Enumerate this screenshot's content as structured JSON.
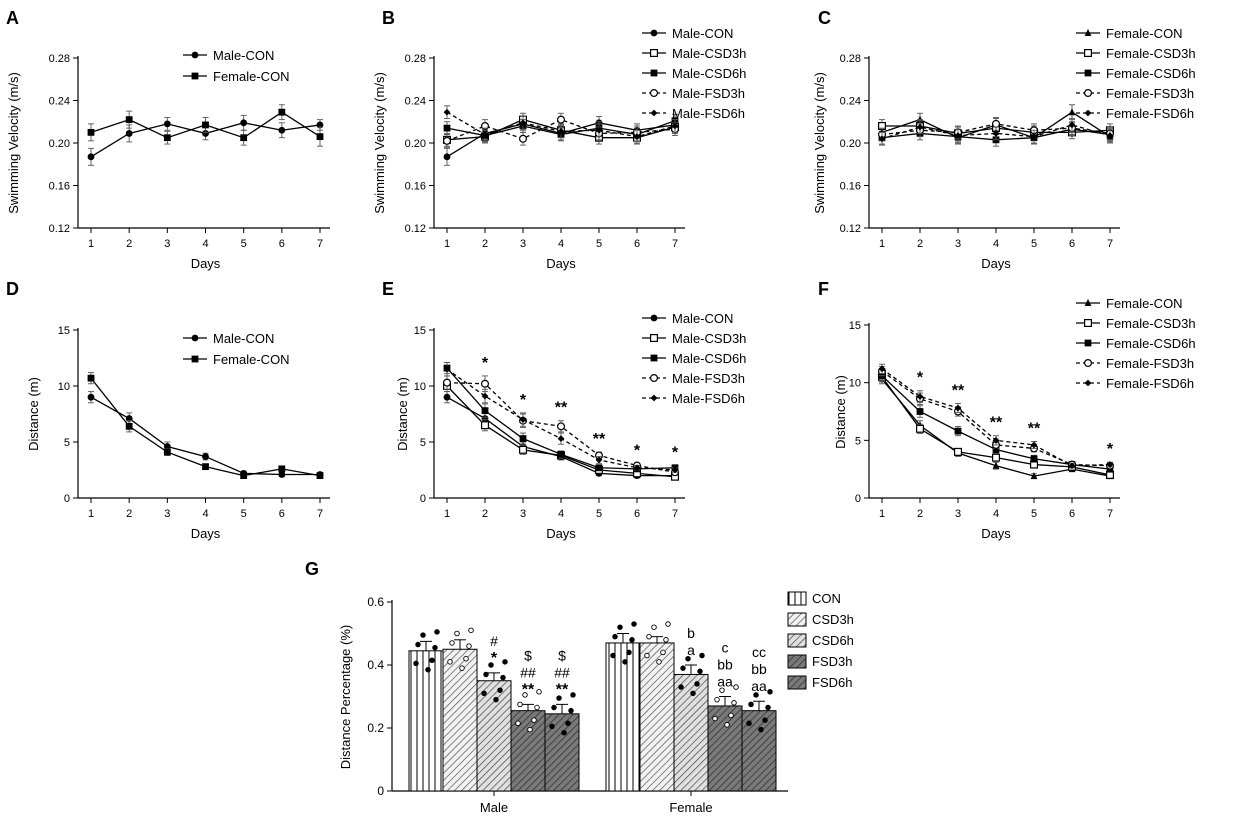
{
  "figure": {
    "panel_letters": [
      "A",
      "B",
      "C",
      "D",
      "E",
      "F",
      "G"
    ]
  },
  "chart_data": [
    {
      "panel": "A",
      "type": "line",
      "ylabel": "Swimming Velocity (m/s)",
      "xlabel": "Days",
      "ylim": [
        0.12,
        0.28
      ],
      "yticks": [
        "0.12",
        "0.16",
        "0.20",
        "0.24",
        "0.28"
      ],
      "x": [
        1,
        2,
        3,
        4,
        5,
        6,
        7
      ],
      "series": [
        {
          "name": "Male-CON",
          "marker": "circle",
          "values": [
            0.187,
            0.209,
            0.218,
            0.209,
            0.219,
            0.212,
            0.217
          ],
          "errors": [
            0.008,
            0.008,
            0.006,
            0.006,
            0.007,
            0.007,
            0.005
          ]
        },
        {
          "name": "Female-CON",
          "marker": "square",
          "values": [
            0.21,
            0.222,
            0.205,
            0.217,
            0.205,
            0.229,
            0.206
          ],
          "errors": [
            0.008,
            0.008,
            0.006,
            0.007,
            0.007,
            0.007,
            0.009
          ]
        }
      ]
    },
    {
      "panel": "B",
      "type": "line",
      "ylabel": "Swimming Velocity (m/s)",
      "xlabel": "Days",
      "ylim": [
        0.12,
        0.28
      ],
      "yticks": [
        "0.12",
        "0.16",
        "0.20",
        "0.24",
        "0.28"
      ],
      "x": [
        1,
        2,
        3,
        4,
        5,
        6,
        7
      ],
      "series": [
        {
          "name": "Male-CON",
          "marker": "circle",
          "values": [
            0.187,
            0.209,
            0.218,
            0.209,
            0.219,
            0.212,
            0.217
          ],
          "errors": [
            0.008,
            0.007,
            0.006,
            0.006,
            0.006,
            0.006,
            0.005
          ]
        },
        {
          "name": "Male-CSD3h",
          "marker": "square-open",
          "values": [
            0.203,
            0.206,
            0.222,
            0.212,
            0.205,
            0.205,
            0.215
          ],
          "errors": [
            0.006,
            0.006,
            0.006,
            0.006,
            0.006,
            0.006,
            0.006
          ]
        },
        {
          "name": "Male-CSD6h",
          "marker": "square",
          "values": [
            0.214,
            0.207,
            0.216,
            0.208,
            0.214,
            0.208,
            0.221
          ],
          "errors": [
            0.006,
            0.006,
            0.006,
            0.006,
            0.006,
            0.006,
            0.006
          ]
        },
        {
          "name": "Male-FSD3h",
          "marker": "circle-open",
          "values": [
            0.202,
            0.216,
            0.204,
            0.222,
            0.209,
            0.21,
            0.213
          ],
          "errors": [
            0.006,
            0.006,
            0.006,
            0.006,
            0.006,
            0.006,
            0.006
          ]
        },
        {
          "name": "Male-FSD6h",
          "marker": "diamond",
          "values": [
            0.229,
            0.208,
            0.219,
            0.211,
            0.212,
            0.206,
            0.216
          ],
          "errors": [
            0.006,
            0.006,
            0.006,
            0.006,
            0.006,
            0.006,
            0.006
          ]
        }
      ]
    },
    {
      "panel": "C",
      "type": "line",
      "ylabel": "Swimming Velocity (m/s)",
      "xlabel": "Days",
      "ylim": [
        0.12,
        0.28
      ],
      "yticks": [
        "0.12",
        "0.16",
        "0.20",
        "0.24",
        "0.28"
      ],
      "x": [
        1,
        2,
        3,
        4,
        5,
        6,
        7
      ],
      "series": [
        {
          "name": "Female-CON",
          "marker": "triangle",
          "values": [
            0.21,
            0.222,
            0.205,
            0.217,
            0.205,
            0.229,
            0.206
          ],
          "errors": [
            0.006,
            0.006,
            0.006,
            0.006,
            0.006,
            0.007,
            0.006
          ]
        },
        {
          "name": "Female-CSD3h",
          "marker": "square-open",
          "values": [
            0.216,
            0.216,
            0.209,
            0.214,
            0.21,
            0.21,
            0.212
          ],
          "errors": [
            0.006,
            0.006,
            0.006,
            0.006,
            0.006,
            0.006,
            0.006
          ]
        },
        {
          "name": "Female-CSD6h",
          "marker": "square",
          "values": [
            0.205,
            0.209,
            0.206,
            0.203,
            0.205,
            0.213,
            0.208
          ],
          "errors": [
            0.006,
            0.006,
            0.006,
            0.006,
            0.006,
            0.006,
            0.006
          ]
        },
        {
          "name": "Female-FSD3h",
          "marker": "circle-open",
          "values": [
            0.208,
            0.212,
            0.21,
            0.218,
            0.212,
            0.214,
            0.209
          ],
          "errors": [
            0.006,
            0.006,
            0.006,
            0.006,
            0.006,
            0.006,
            0.006
          ]
        },
        {
          "name": "Female-FSD6h",
          "marker": "diamond",
          "values": [
            0.204,
            0.215,
            0.207,
            0.209,
            0.206,
            0.217,
            0.207
          ],
          "errors": [
            0.006,
            0.006,
            0.006,
            0.006,
            0.006,
            0.006,
            0.006
          ]
        }
      ]
    },
    {
      "panel": "D",
      "type": "line",
      "ylabel": "Distance (m)",
      "xlabel": "Days",
      "ylim": [
        0,
        15
      ],
      "yticks": [
        "0",
        "5",
        "10",
        "15"
      ],
      "x": [
        1,
        2,
        3,
        4,
        5,
        6,
        7
      ],
      "series": [
        {
          "name": "Male-CON",
          "marker": "circle",
          "values": [
            9.0,
            7.1,
            4.6,
            3.7,
            2.2,
            2.1,
            2.1
          ],
          "errors": [
            0.5,
            0.5,
            0.4,
            0.3,
            0.2,
            0.2,
            0.1
          ]
        },
        {
          "name": "Female-CON",
          "marker": "square",
          "values": [
            10.7,
            6.4,
            4.1,
            2.8,
            2.0,
            2.6,
            2.0
          ],
          "errors": [
            0.5,
            0.5,
            0.3,
            0.2,
            0.2,
            0.2,
            0.1
          ]
        }
      ]
    },
    {
      "panel": "E",
      "type": "line",
      "ylabel": "Distance (m)",
      "xlabel": "Days",
      "ylim": [
        0,
        15
      ],
      "yticks": [
        "0",
        "5",
        "10",
        "15"
      ],
      "x": [
        1,
        2,
        3,
        4,
        5,
        6,
        7
      ],
      "significance": [
        {
          "x": 2,
          "label": "*"
        },
        {
          "x": 3,
          "label": "*"
        },
        {
          "x": 4,
          "label": "**"
        },
        {
          "x": 5,
          "label": "**"
        },
        {
          "x": 6,
          "label": "*"
        },
        {
          "x": 7,
          "label": "*"
        }
      ],
      "series": [
        {
          "name": "Male-CON",
          "marker": "circle",
          "values": [
            9.0,
            7.1,
            4.6,
            3.7,
            2.2,
            2.0,
            2.0
          ],
          "errors": [
            0.5,
            0.5,
            0.4,
            0.3,
            0.2,
            0.2,
            0.1
          ]
        },
        {
          "name": "Male-CSD3h",
          "marker": "square-open",
          "values": [
            10.0,
            6.5,
            4.3,
            3.8,
            2.5,
            2.2,
            1.9
          ],
          "errors": [
            0.5,
            0.5,
            0.4,
            0.3,
            0.2,
            0.2,
            0.2
          ]
        },
        {
          "name": "Male-CSD6h",
          "marker": "square",
          "values": [
            11.6,
            7.8,
            5.3,
            3.9,
            2.7,
            2.6,
            2.7
          ],
          "errors": [
            0.5,
            0.6,
            0.5,
            0.3,
            0.2,
            0.2,
            0.2
          ]
        },
        {
          "name": "Male-FSD3h",
          "marker": "circle-open",
          "values": [
            10.3,
            10.2,
            6.9,
            6.4,
            3.8,
            2.9,
            2.3
          ],
          "errors": [
            0.6,
            0.7,
            0.6,
            0.5,
            0.3,
            0.2,
            0.2
          ]
        },
        {
          "name": "Male-FSD6h",
          "marker": "diamond",
          "values": [
            11.5,
            9.1,
            7.0,
            5.3,
            3.4,
            2.7,
            2.5
          ],
          "errors": [
            0.6,
            0.6,
            0.6,
            0.5,
            0.3,
            0.2,
            0.2
          ]
        }
      ]
    },
    {
      "panel": "F",
      "type": "line",
      "ylabel": "Distance (m)",
      "xlabel": "Days",
      "ylim": [
        0,
        15
      ],
      "yticks": [
        "0",
        "5",
        "10",
        "15"
      ],
      "x": [
        1,
        2,
        3,
        4,
        5,
        6,
        7
      ],
      "significance": [
        {
          "x": 2,
          "label": "*"
        },
        {
          "x": 3,
          "label": "**"
        },
        {
          "x": 4,
          "label": "**"
        },
        {
          "x": 5,
          "label": "**"
        },
        {
          "x": 7,
          "label": "*"
        }
      ],
      "series": [
        {
          "name": "Female-CON",
          "marker": "triangle",
          "values": [
            10.3,
            6.3,
            3.9,
            2.8,
            1.9,
            2.5,
            1.9
          ],
          "errors": [
            0.4,
            0.4,
            0.3,
            0.3,
            0.2,
            0.2,
            0.1
          ]
        },
        {
          "name": "Female-CSD3h",
          "marker": "square-open",
          "values": [
            10.5,
            6.0,
            4.0,
            3.5,
            2.9,
            2.7,
            2.0
          ],
          "errors": [
            0.4,
            0.4,
            0.3,
            0.3,
            0.2,
            0.2,
            0.1
          ]
        },
        {
          "name": "Female-CSD6h",
          "marker": "square",
          "values": [
            10.6,
            7.5,
            5.8,
            4.2,
            3.4,
            2.9,
            2.5
          ],
          "errors": [
            0.4,
            0.5,
            0.4,
            0.3,
            0.3,
            0.2,
            0.2
          ]
        },
        {
          "name": "Female-FSD3h",
          "marker": "circle-open",
          "values": [
            11.0,
            8.6,
            7.5,
            4.6,
            4.3,
            2.9,
            2.8
          ],
          "errors": [
            0.4,
            0.5,
            0.4,
            0.3,
            0.3,
            0.2,
            0.2
          ]
        },
        {
          "name": "Female-FSD6h",
          "marker": "diamond",
          "values": [
            11.2,
            8.8,
            7.8,
            5.0,
            4.6,
            2.8,
            2.9
          ],
          "errors": [
            0.4,
            0.5,
            0.4,
            0.4,
            0.3,
            0.2,
            0.2
          ]
        }
      ]
    },
    {
      "panel": "G",
      "type": "bar",
      "ylabel": "Distance Percentage (%)",
      "ylim": [
        0,
        0.6
      ],
      "yticks": [
        "0",
        "0.2",
        "0.4",
        "0.6"
      ],
      "categories": [
        "Male",
        "Female"
      ],
      "series": [
        {
          "name": "CON",
          "pattern": "vertical",
          "values": [
            0.445,
            0.47
          ],
          "errors": [
            0.03,
            0.03
          ]
        },
        {
          "name": "CSD3h",
          "pattern": "hatch-light",
          "values": [
            0.45,
            0.47
          ],
          "errors": [
            0.03,
            0.02
          ]
        },
        {
          "name": "CSD6h",
          "pattern": "hatch-light-grey",
          "values": [
            0.35,
            0.37
          ],
          "errors": [
            0.025,
            0.03
          ]
        },
        {
          "name": "FSD3h",
          "pattern": "hatch-dark",
          "values": [
            0.255,
            0.27
          ],
          "errors": [
            0.02,
            0.03
          ]
        },
        {
          "name": "FSD6h",
          "pattern": "hatch-dark",
          "values": [
            0.245,
            0.255
          ],
          "errors": [
            0.03,
            0.03
          ]
        }
      ],
      "annotations": {
        "Male": [
          [],
          [],
          [
            "#",
            "*"
          ],
          [
            "$",
            "##",
            "**"
          ],
          [
            "$",
            "##",
            "**"
          ]
        ],
        "Female": [
          [],
          [],
          [
            "b",
            "a"
          ],
          [
            "c",
            "bb",
            "aa"
          ],
          [
            "cc",
            "bb",
            "aa"
          ]
        ]
      }
    }
  ]
}
